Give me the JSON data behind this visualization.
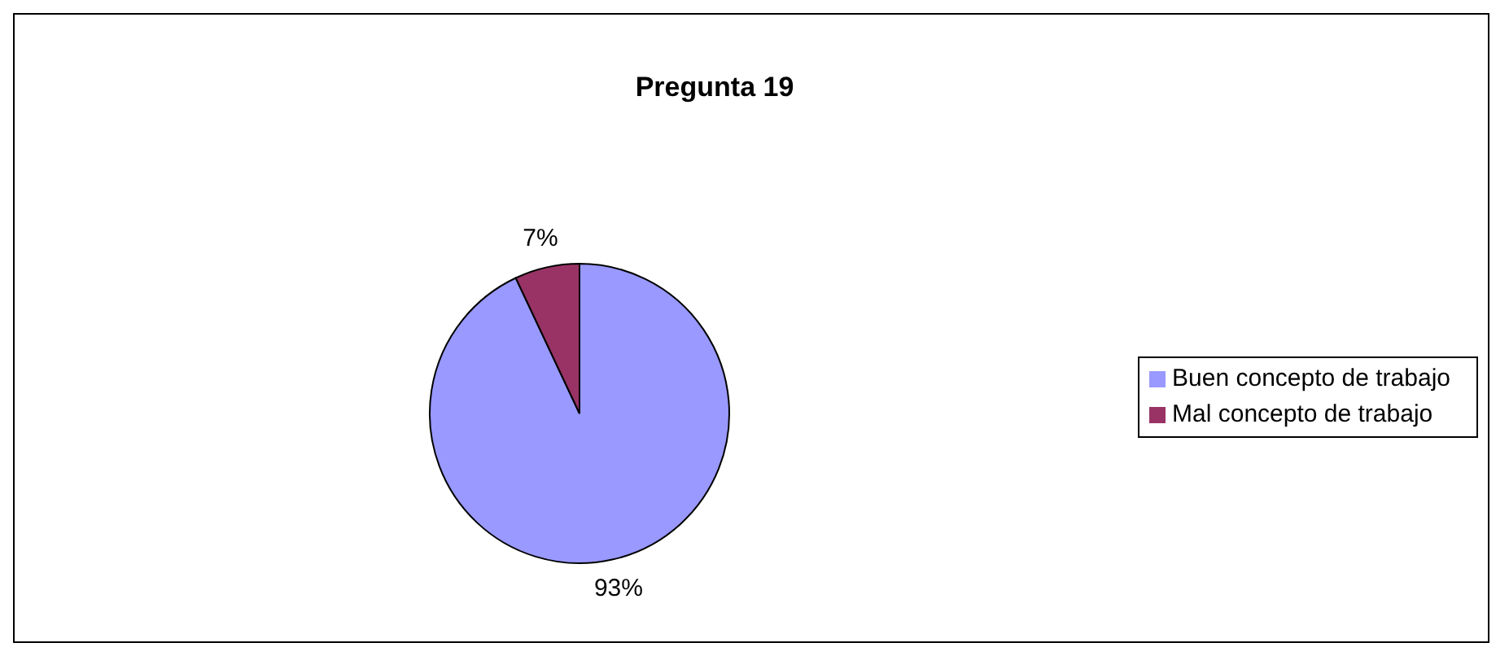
{
  "chart_data": {
    "type": "pie",
    "title": "Pregunta 19",
    "categories": [
      "Buen concepto de trabajo",
      "Mal concepto de trabajo"
    ],
    "values": [
      93,
      7
    ],
    "value_labels": [
      "93%",
      "7%"
    ],
    "colors": [
      "#9999ff",
      "#993366"
    ],
    "legend": "right"
  }
}
